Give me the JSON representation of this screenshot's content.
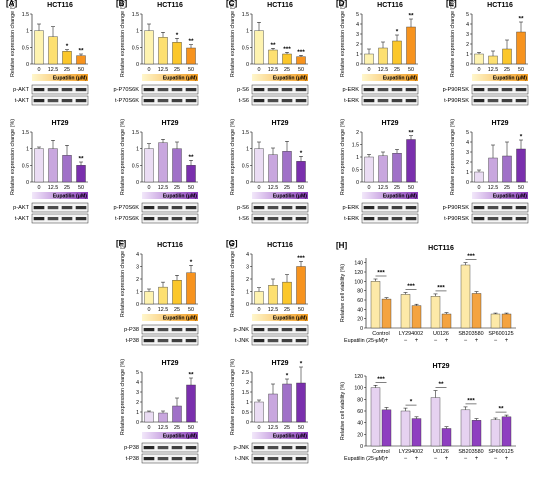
{
  "colors": {
    "hct_bars": [
      "#fef3b0",
      "#fde071",
      "#fbc72a",
      "#f7931e"
    ],
    "ht_bars": [
      "#eadcf3",
      "#c8a6de",
      "#a071c8",
      "#7a2fad"
    ],
    "hct_grad": [
      "#fff7cc",
      "#f39c1f"
    ],
    "ht_grad": [
      "#f2e8fa",
      "#8a3bbd"
    ],
    "cv_hct": [
      "#fde9a8",
      "#f4a340"
    ],
    "cv_ht": [
      "#e6d2f1",
      "#8e3fc0"
    ]
  },
  "common": {
    "categories": [
      "0",
      "12.5",
      "25",
      "50"
    ],
    "ylabel": "Relative expression change (%)",
    "treatment": "Eupatilin (μM)"
  },
  "chart_data": [
    {
      "type": "bar",
      "panel": "[A]",
      "title": "HCT116",
      "cell": "hct",
      "categories": [
        "0",
        "12.5",
        "25",
        "50"
      ],
      "values": [
        1.0,
        0.82,
        0.38,
        0.25
      ],
      "errors": [
        0.2,
        0.3,
        0.05,
        0.05
      ],
      "sig": [
        "",
        "",
        "*",
        "**"
      ],
      "ylim": [
        0,
        1.5
      ],
      "yticks": [
        "0",
        "0.5",
        "1",
        "1.5"
      ],
      "blots": [
        "p-AKT",
        "t-AKT"
      ]
    },
    {
      "type": "bar",
      "panel": "[B]",
      "title": "HCT116",
      "cell": "hct",
      "categories": [
        "0",
        "12.5",
        "25",
        "50"
      ],
      "values": [
        1.0,
        0.8,
        0.65,
        0.48
      ],
      "errors": [
        0.2,
        0.15,
        0.12,
        0.1
      ],
      "sig": [
        "",
        "",
        "*",
        "**"
      ],
      "ylim": [
        0,
        1.5
      ],
      "yticks": [
        "0",
        "0.5",
        "1",
        "1.5"
      ],
      "blots": [
        "p-P70S6K",
        "t-P70S6K"
      ]
    },
    {
      "type": "bar",
      "panel": "[C]",
      "title": "HCT116",
      "cell": "hct",
      "categories": [
        "0",
        "12.5",
        "25",
        "50"
      ],
      "values": [
        1.0,
        0.42,
        0.3,
        0.22
      ],
      "errors": [
        0.25,
        0.05,
        0.05,
        0.04
      ],
      "sig": [
        "",
        "**",
        "***",
        "***"
      ],
      "ylim": [
        0,
        1.5
      ],
      "yticks": [
        "0",
        "0.5",
        "1",
        "1.5"
      ],
      "blots": [
        "p-S6",
        "t-S6"
      ]
    },
    {
      "type": "bar",
      "panel": "[D]",
      "title": "HCT116",
      "cell": "hct",
      "categories": [
        "0",
        "12.5",
        "25",
        "50"
      ],
      "values": [
        1.0,
        1.6,
        2.3,
        3.7
      ],
      "errors": [
        0.5,
        0.6,
        0.6,
        0.8
      ],
      "sig": [
        "",
        "",
        "*",
        "**"
      ],
      "ylim": [
        0,
        5
      ],
      "yticks": [
        "0",
        "1",
        "2",
        "3",
        "4",
        "5"
      ],
      "blots": [
        "p-ERK",
        "t-ERK"
      ]
    },
    {
      "type": "bar",
      "panel": "[E]",
      "title": "HCT116",
      "cell": "hct",
      "categories": [
        "0",
        "12.5",
        "25",
        "50"
      ],
      "values": [
        1.0,
        0.8,
        1.5,
        3.2
      ],
      "errors": [
        0.15,
        0.5,
        0.9,
        1.0
      ],
      "sig": [
        "",
        "",
        "",
        "**"
      ],
      "ylim": [
        0,
        5
      ],
      "yticks": [
        "0",
        "1",
        "2",
        "3",
        "4",
        "5"
      ],
      "blots": [
        "p-P90RSK",
        "t-P90RSK"
      ]
    },
    {
      "type": "bar",
      "panel": "",
      "title": "HT29",
      "cell": "ht",
      "categories": [
        "0",
        "12.5",
        "25",
        "50"
      ],
      "values": [
        1.0,
        1.0,
        0.8,
        0.5
      ],
      "errors": [
        0.05,
        0.25,
        0.3,
        0.1
      ],
      "sig": [
        "",
        "",
        "",
        "**"
      ],
      "ylim": [
        0,
        1.5
      ],
      "yticks": [
        "0",
        "0.5",
        "1",
        "1.5"
      ],
      "blots": [
        "p-AKT",
        "t-AKT"
      ]
    },
    {
      "type": "bar",
      "panel": "",
      "title": "HT29",
      "cell": "ht",
      "categories": [
        "0",
        "12.5",
        "25",
        "50"
      ],
      "values": [
        1.0,
        1.18,
        1.0,
        0.5
      ],
      "errors": [
        0.15,
        0.1,
        0.2,
        0.15
      ],
      "sig": [
        "",
        "",
        "",
        "**"
      ],
      "ylim": [
        0,
        1.5
      ],
      "yticks": [
        "0",
        "0.5",
        "1",
        "1.5"
      ],
      "blots": [
        "p-P70S6K",
        "t-P70S6K"
      ]
    },
    {
      "type": "bar",
      "panel": "",
      "title": "HT29",
      "cell": "ht",
      "categories": [
        "0",
        "12.5",
        "25",
        "50"
      ],
      "values": [
        1.0,
        0.82,
        0.92,
        0.62
      ],
      "errors": [
        0.2,
        0.2,
        0.3,
        0.15
      ],
      "sig": [
        "",
        "",
        "",
        "*"
      ],
      "ylim": [
        0,
        1.5
      ],
      "yticks": [
        "0",
        "0.5",
        "1",
        "1.5"
      ],
      "blots": [
        "p-S6",
        "t-S6"
      ]
    },
    {
      "type": "bar",
      "panel": "",
      "title": "HT29",
      "cell": "ht",
      "categories": [
        "0",
        "12.5",
        "25",
        "50"
      ],
      "values": [
        1.0,
        1.05,
        1.15,
        1.7
      ],
      "errors": [
        0.1,
        0.15,
        0.15,
        0.15
      ],
      "sig": [
        "",
        "",
        "",
        "**"
      ],
      "ylim": [
        0,
        2
      ],
      "yticks": [
        "0",
        "0.5",
        "1",
        "1.5",
        "2"
      ],
      "blots": [
        "p-ERK",
        "t-ERK"
      ]
    },
    {
      "type": "bar",
      "panel": "",
      "title": "HT29",
      "cell": "ht",
      "categories": [
        "0",
        "12.5",
        "25",
        "50"
      ],
      "values": [
        1.0,
        2.4,
        2.6,
        3.3
      ],
      "errors": [
        0.2,
        1.3,
        1.4,
        0.9
      ],
      "sig": [
        "",
        "",
        "",
        "*"
      ],
      "ylim": [
        0,
        5
      ],
      "yticks": [
        "0",
        "1",
        "2",
        "3",
        "4",
        "5"
      ],
      "blots": [
        "p-P90RSK",
        "t-P90RSK"
      ]
    },
    {
      "type": "bar",
      "panel": "[F]",
      "title": "HCT116",
      "cell": "hct",
      "categories": [
        "0",
        "12.5",
        "25",
        "50"
      ],
      "values": [
        1.0,
        1.35,
        1.9,
        2.5
      ],
      "errors": [
        0.2,
        0.4,
        0.4,
        0.6
      ],
      "sig": [
        "",
        "",
        "",
        "*"
      ],
      "ylim": [
        0,
        4
      ],
      "yticks": [
        "0",
        "1",
        "2",
        "3",
        "4"
      ],
      "blots": [
        "p-P38",
        "t-P38"
      ]
    },
    {
      "type": "bar",
      "panel": "[G]",
      "title": "HCT116",
      "cell": "hct",
      "categories": [
        "0",
        "12.5",
        "25",
        "50"
      ],
      "values": [
        1.0,
        1.5,
        1.75,
        3.0
      ],
      "errors": [
        0.3,
        0.5,
        0.6,
        0.4
      ],
      "sig": [
        "",
        "",
        "",
        "***"
      ],
      "ylim": [
        0,
        4
      ],
      "yticks": [
        "0",
        "1",
        "2",
        "3",
        "4"
      ],
      "blots": [
        "p-JNK",
        "t-JNK"
      ]
    },
    {
      "type": "bar",
      "panel": "",
      "title": "HT29",
      "cell": "ht",
      "categories": [
        "0",
        "12.5",
        "25",
        "50"
      ],
      "values": [
        1.0,
        0.9,
        1.6,
        3.7
      ],
      "errors": [
        0.1,
        0.2,
        0.8,
        0.7
      ],
      "sig": [
        "",
        "",
        "",
        "**"
      ],
      "ylim": [
        0,
        5
      ],
      "yticks": [
        "0",
        "1",
        "2",
        "3",
        "4",
        "5"
      ],
      "blots": [
        "p-P38",
        "t-P38"
      ]
    },
    {
      "type": "bar",
      "panel": "",
      "title": "HT29",
      "cell": "ht",
      "categories": [
        "0",
        "12.5",
        "25",
        "50"
      ],
      "values": [
        1.0,
        1.4,
        1.9,
        1.95
      ],
      "errors": [
        0.1,
        0.5,
        0.25,
        0.8
      ],
      "sig": [
        "",
        "",
        "*",
        "*"
      ],
      "ylim": [
        0,
        2.5
      ],
      "yticks": [
        "0",
        "0.5",
        "1",
        "1.5",
        "2",
        "2.5"
      ],
      "blots": [
        "p-JNK",
        "t-JNK"
      ]
    },
    {
      "type": "bar",
      "panel": "[H]",
      "title": "HCT116",
      "cell": "cv_hct",
      "group_labels": [
        "Control",
        "LY294002",
        "U0126",
        "SB203580",
        "SP600125"
      ],
      "values": [
        [
          100,
          62
        ],
        [
          72,
          48
        ],
        [
          68,
          30
        ],
        [
          135,
          74
        ],
        [
          30,
          30
        ]
      ],
      "errors": [
        [
          5,
          3
        ],
        [
          4,
          3
        ],
        [
          5,
          3
        ],
        [
          5,
          4
        ],
        [
          2,
          2
        ]
      ],
      "sig": [
        "***",
        "***",
        "***",
        "***",
        ""
      ],
      "ylim": [
        0,
        150
      ],
      "yticks": [
        "0",
        "20",
        "40",
        "60",
        "80",
        "100",
        "120",
        "140"
      ],
      "ylabel": "Relative cell viability (%)",
      "xlabel": "Eupatilin (25 μM)",
      "signs": [
        "−",
        "+"
      ]
    },
    {
      "type": "bar",
      "panel": "",
      "title": "HT29",
      "cell": "cv_ht",
      "group_labels": [
        "Control",
        "LY294002",
        "U0126",
        "SB203580",
        "SP600125"
      ],
      "values": [
        [
          100,
          62
        ],
        [
          60,
          47
        ],
        [
          83,
          30
        ],
        [
          62,
          44
        ],
        [
          45,
          50
        ]
      ],
      "errors": [
        [
          4,
          4
        ],
        [
          5,
          3
        ],
        [
          12,
          3
        ],
        [
          5,
          3
        ],
        [
          3,
          3
        ]
      ],
      "sig": [
        "***",
        "*",
        "**",
        "***",
        "**"
      ],
      "ylim": [
        0,
        120
      ],
      "yticks": [
        "0",
        "20",
        "40",
        "60",
        "80",
        "100",
        "120"
      ],
      "ylabel": "Relative cell viability (%)",
      "xlabel": "Eupatilin (25 μM)",
      "signs": [
        "−",
        "+"
      ]
    }
  ]
}
